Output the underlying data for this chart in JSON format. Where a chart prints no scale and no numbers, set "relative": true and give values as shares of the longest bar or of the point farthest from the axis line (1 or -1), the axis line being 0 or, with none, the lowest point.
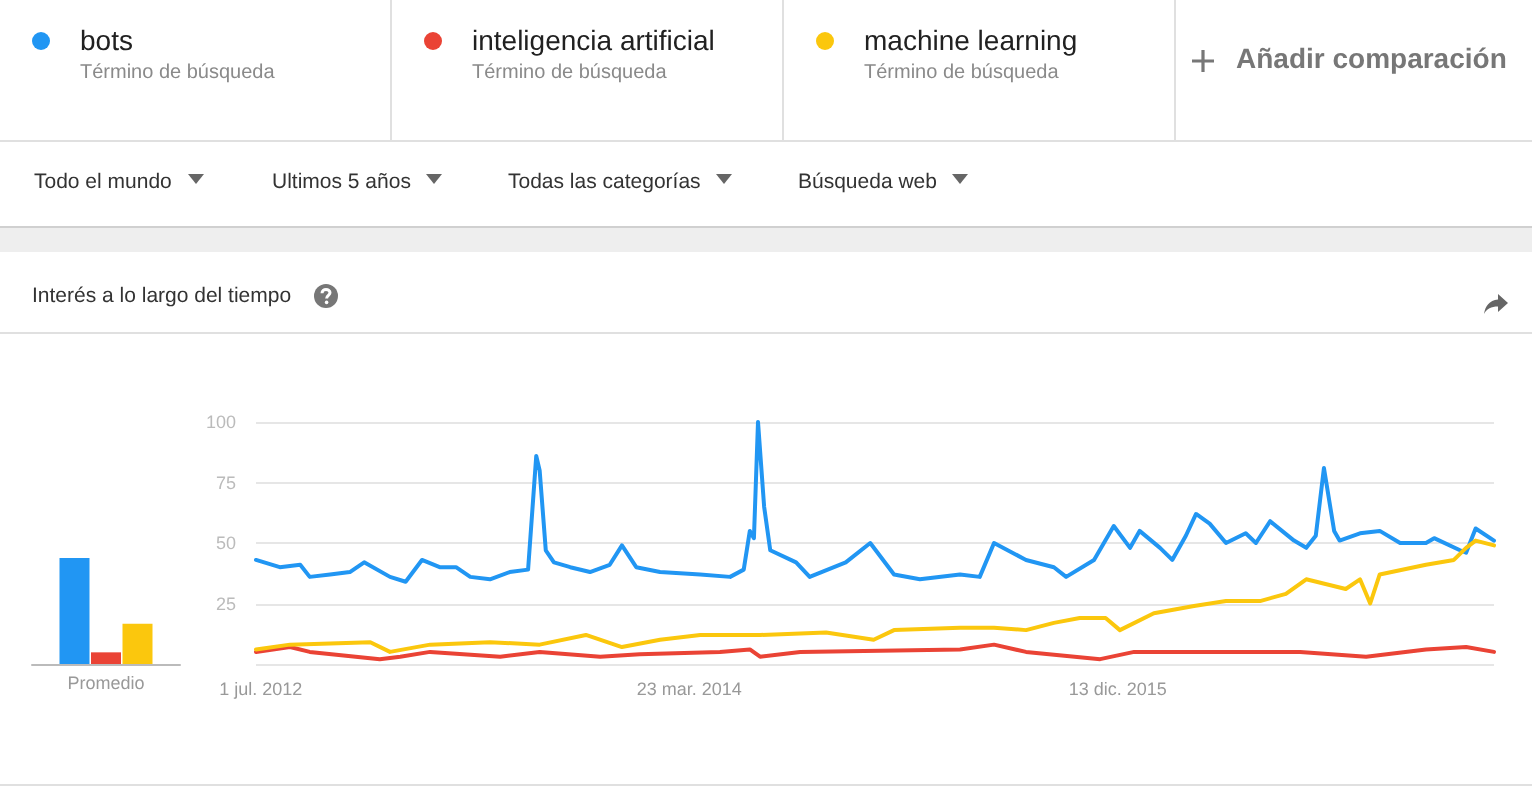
{
  "chart_data": [
    {
      "type": "bar",
      "categories": [
        "Promedio"
      ],
      "relative": true,
      "grid": false,
      "series": [
        {
          "color": "#2196f3",
          "values": [
            1
          ]
        },
        {
          "color": "#ea4335",
          "values": [
            0.11
          ]
        },
        {
          "color": "#fbc70d",
          "values": [
            0.38
          ]
        }
      ]
    },
    {
      "type": "line",
      "title": "Interés a lo largo del tiempo",
      "legend": "top",
      "grid": "y",
      "marker": "none",
      "line_style": "solid",
      "annotations": [
        "Término de búsqueda",
        "Término de búsqueda",
        "Término de búsqueda",
        "Añadir comparación",
        "Todo el mundo",
        "Ultimos 5 años",
        "Todas las categorías",
        "Búsqueda web"
      ],
      "xlim": [
        "2012-06-24",
        "2017-06-18"
      ],
      "xticks": [
        {
          "value": "2012-07-01",
          "label": "1 jul. 2012"
        },
        {
          "value": "2014-03-23",
          "label": "23 mar. 2014"
        },
        {
          "value": "2015-12-13",
          "label": "13 dic. 2015"
        }
      ],
      "ylim": [
        0,
        100
      ],
      "yticks": [
        {
          "value": 0,
          "label": null
        },
        25,
        50,
        75,
        100
      ],
      "series": [
        {
          "name": "bots",
          "color": "#2196f3",
          "x": [
            "2012-06-24",
            "2012-07-29",
            "2012-08-28",
            "2012-09-11",
            "2012-10-11",
            "2012-11-09",
            "2012-11-30",
            "2013-01-07",
            "2013-01-30",
            "2013-02-23",
            "2013-03-21",
            "2013-04-14",
            "2013-05-05",
            "2013-06-03",
            "2013-07-02",
            "2013-07-29",
            "2013-08-10",
            "2013-08-15",
            "2013-08-24",
            "2013-09-05",
            "2013-09-29",
            "2013-10-28",
            "2013-11-26",
            "2013-12-14",
            "2014-01-04",
            "2014-02-08",
            "2014-04-08",
            "2014-05-22",
            "2014-06-11",
            "2014-06-20",
            "2014-06-26",
            "2014-07-02",
            "2014-07-11",
            "2014-07-20",
            "2014-08-27",
            "2014-09-16",
            "2014-11-08",
            "2014-12-14",
            "2015-01-18",
            "2015-02-25",
            "2015-04-25",
            "2015-05-24",
            "2015-06-14",
            "2015-07-31",
            "2015-09-10",
            "2015-09-28",
            "2015-11-08",
            "2015-12-07",
            "2015-12-31",
            "2016-01-14",
            "2016-02-13",
            "2016-03-02",
            "2016-03-22",
            "2016-04-06",
            "2016-04-26",
            "2016-05-20",
            "2016-06-18",
            "2016-07-03",
            "2016-07-24",
            "2016-08-28",
            "2016-09-15",
            "2016-09-29",
            "2016-10-11",
            "2016-10-26",
            "2016-11-03",
            "2016-12-03",
            "2017-01-01",
            "2017-01-31",
            "2017-03-10",
            "2017-03-22",
            "2017-04-29",
            "2017-05-08",
            "2017-05-22",
            "2017-06-18"
          ],
          "values": [
            43,
            40,
            41,
            36,
            37,
            38,
            42,
            36,
            34,
            43,
            40,
            40,
            36,
            35,
            38,
            39,
            86,
            80,
            47,
            42,
            40,
            38,
            41,
            49,
            40,
            38,
            37,
            36,
            39,
            55,
            52,
            100,
            65,
            47,
            42,
            36,
            42,
            50,
            37,
            35,
            37,
            36,
            50,
            43,
            40,
            36,
            43,
            57,
            48,
            55,
            48,
            43,
            53,
            62,
            58,
            50,
            54,
            50,
            59,
            51,
            48,
            53,
            81,
            55,
            51,
            54,
            55,
            50,
            50,
            52,
            47,
            46,
            56,
            51
          ]
        },
        {
          "name": "inteligencia artificial",
          "color": "#ea4335",
          "x": [
            "2012-06-24",
            "2012-08-13",
            "2012-09-11",
            "2012-12-23",
            "2013-01-22",
            "2013-03-07",
            "2013-06-18",
            "2013-08-15",
            "2013-11-12",
            "2014-01-09",
            "2014-05-07",
            "2014-06-20",
            "2014-07-05",
            "2014-09-02",
            "2015-04-25",
            "2015-06-14",
            "2015-07-31",
            "2015-11-17",
            "2016-01-06",
            "2016-04-12",
            "2016-09-06",
            "2016-12-12",
            "2017-03-10",
            "2017-05-08",
            "2017-06-18"
          ],
          "values": [
            5,
            7,
            5,
            2,
            3,
            5,
            3,
            5,
            3,
            4,
            5,
            6,
            3,
            5,
            6,
            8,
            5,
            2,
            5,
            5,
            5,
            3,
            6,
            7,
            5
          ]
        },
        {
          "name": "machine learning",
          "color": "#fbc70d",
          "x": [
            "2012-06-24",
            "2012-08-13",
            "2012-12-09",
            "2013-01-07",
            "2013-03-07",
            "2013-06-03",
            "2013-08-15",
            "2013-10-22",
            "2013-12-14",
            "2014-02-08",
            "2014-04-08",
            "2014-07-05",
            "2014-10-10",
            "2014-12-19",
            "2015-01-18",
            "2015-04-25",
            "2015-06-14",
            "2015-07-31",
            "2015-09-10",
            "2015-10-18",
            "2015-11-25",
            "2015-12-16",
            "2016-02-04",
            "2016-04-03",
            "2016-05-20",
            "2016-07-09",
            "2016-08-16",
            "2016-09-15",
            "2016-11-12",
            "2016-12-03",
            "2016-12-18",
            "2017-01-01",
            "2017-03-10",
            "2017-04-20",
            "2017-05-08",
            "2017-05-22",
            "2017-06-18"
          ],
          "values": [
            6,
            8,
            9,
            5,
            8,
            9,
            8,
            12,
            7,
            10,
            12,
            12,
            13,
            10,
            14,
            15,
            15,
            14,
            17,
            19,
            19,
            14,
            21,
            24,
            26,
            26,
            29,
            35,
            31,
            35,
            25,
            37,
            41,
            43,
            48,
            51,
            49
          ]
        }
      ]
    }
  ]
}
